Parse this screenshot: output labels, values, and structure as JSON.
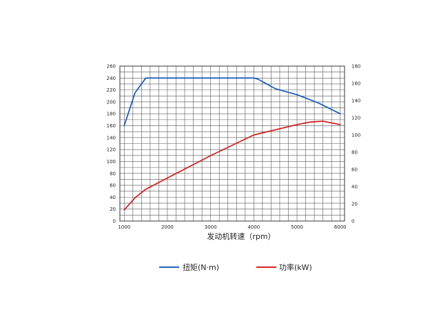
{
  "chart_data": {
    "type": "line",
    "title": "",
    "xlabel": "发动机转速（rpm）",
    "x_ticks": [
      "1000",
      "2000",
      "3000",
      "4000",
      "5000",
      "6000"
    ],
    "xlim": [
      900,
      6100
    ],
    "y_left_ticks": [
      "0",
      "20",
      "40",
      "60",
      "80",
      "100",
      "120",
      "140",
      "160",
      "180",
      "200",
      "220",
      "240",
      "260"
    ],
    "ylim_left": [
      0,
      260
    ],
    "y_right_ticks": [
      "0",
      "20",
      "40",
      "60",
      "80",
      "100",
      "120",
      "140",
      "160",
      "180"
    ],
    "ylim_right": [
      0,
      180
    ],
    "grid": true,
    "legend_position": "bottom",
    "series": [
      {
        "name": "扭矩(N·m)",
        "axis": "left",
        "color": "#1f5fbf",
        "x": [
          1000,
          1250,
          1500,
          2000,
          3000,
          4000,
          4100,
          4500,
          5000,
          5500,
          6000
        ],
        "y": [
          160,
          215,
          240,
          240,
          240,
          240,
          238,
          222,
          212,
          198,
          180
        ]
      },
      {
        "name": "功率(kW)",
        "axis": "right",
        "color": "#d42020",
        "x": [
          1000,
          1250,
          1500,
          2000,
          3000,
          4000,
          5000,
          5300,
          5600,
          6000
        ],
        "y": [
          13,
          27,
          37,
          50,
          76,
          100,
          112,
          115,
          116,
          112
        ]
      }
    ]
  }
}
